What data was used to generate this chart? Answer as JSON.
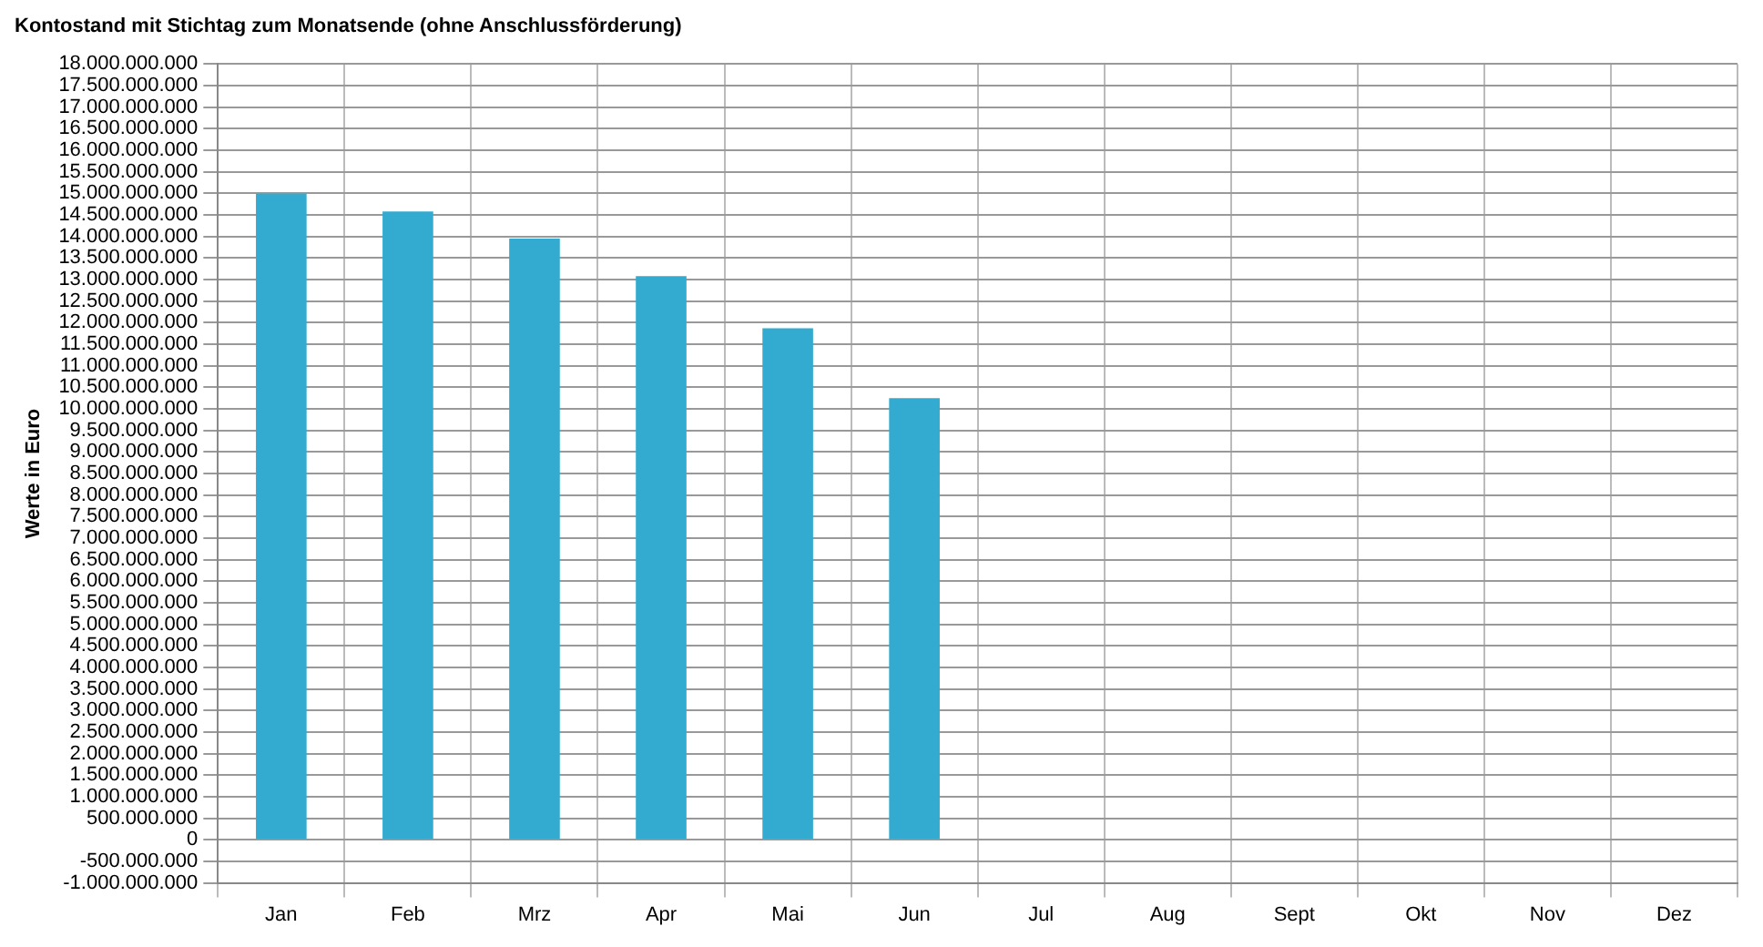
{
  "chart_data": {
    "type": "bar",
    "title": "Kontostand mit Stichtag zum Monatsende (ohne Anschlussförderung)",
    "ylabel": "Werte in Euro",
    "categories": [
      "Jan",
      "Feb",
      "Mrz",
      "Apr",
      "Mai",
      "Jun",
      "Jul",
      "Aug",
      "Sept",
      "Okt",
      "Nov",
      "Dez"
    ],
    "values": [
      15000000000,
      14580000000,
      13950000000,
      13080000000,
      11870000000,
      10250000000,
      null,
      null,
      null,
      null,
      null,
      null
    ],
    "color": "#33abd0",
    "ylim": [
      -1000000000,
      18000000000
    ],
    "yticks": [
      {
        "value": -1000000000,
        "label": "-1.000.000.000"
      },
      {
        "value": -500000000,
        "label": "-500.000.000"
      },
      0,
      {
        "value": 500000000,
        "label": "500.000.000"
      },
      {
        "value": 1000000000,
        "label": "1.000.000.000"
      },
      {
        "value": 1500000000,
        "label": "1.500.000.000"
      },
      {
        "value": 2000000000,
        "label": "2.000.000.000"
      },
      {
        "value": 2500000000,
        "label": "2.500.000.000"
      },
      {
        "value": 3000000000,
        "label": "3.000.000.000"
      },
      {
        "value": 3500000000,
        "label": "3.500.000.000"
      },
      {
        "value": 4000000000,
        "label": "4.000.000.000"
      },
      {
        "value": 4500000000,
        "label": "4.500.000.000"
      },
      {
        "value": 5000000000,
        "label": "5.000.000.000"
      },
      {
        "value": 5500000000,
        "label": "5.500.000.000"
      },
      {
        "value": 6000000000,
        "label": "6.000.000.000"
      },
      {
        "value": 6500000000,
        "label": "6.500.000.000"
      },
      {
        "value": 7000000000,
        "label": "7.000.000.000"
      },
      {
        "value": 7500000000,
        "label": "7.500.000.000"
      },
      {
        "value": 8000000000,
        "label": "8.000.000.000"
      },
      {
        "value": 8500000000,
        "label": "8.500.000.000"
      },
      {
        "value": 9000000000,
        "label": "9.000.000.000"
      },
      {
        "value": 9500000000,
        "label": "9.500.000.000"
      },
      {
        "value": 10000000000,
        "label": "10.000.000.000"
      },
      {
        "value": 10500000000,
        "label": "10.500.000.000"
      },
      {
        "value": 11000000000,
        "label": "11.000.000.000"
      },
      {
        "value": 11500000000,
        "label": "11.500.000.000"
      },
      {
        "value": 12000000000,
        "label": "12.000.000.000"
      },
      {
        "value": 12500000000,
        "label": "12.500.000.000"
      },
      {
        "value": 13000000000,
        "label": "13.000.000.000"
      },
      {
        "value": 13500000000,
        "label": "13.500.000.000"
      },
      {
        "value": 14000000000,
        "label": "14.000.000.000"
      },
      {
        "value": 14500000000,
        "label": "14.500.000.000"
      },
      {
        "value": 15000000000,
        "label": "15.000.000.000"
      },
      {
        "value": 15500000000,
        "label": "15.500.000.000"
      },
      {
        "value": 16000000000,
        "label": "16.000.000.000"
      },
      {
        "value": 16500000000,
        "label": "16.500.000.000"
      },
      {
        "value": 17000000000,
        "label": "17.000.000.000"
      },
      {
        "value": 17500000000,
        "label": "17.500.000.000"
      },
      {
        "value": 18000000000,
        "label": "18.000.000.000"
      }
    ],
    "grid": true
  }
}
